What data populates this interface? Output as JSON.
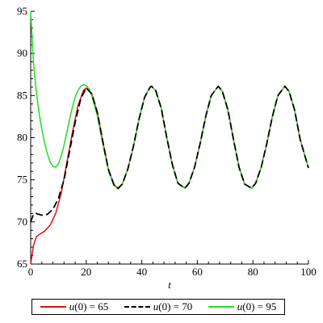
{
  "chart_data": {
    "type": "line",
    "title": "",
    "xlabel": "t",
    "ylabel": "",
    "xlim": [
      0,
      100
    ],
    "ylim": [
      65,
      95
    ],
    "xticks": [
      0,
      20,
      40,
      60,
      80,
      100
    ],
    "yticks": [
      65,
      70,
      75,
      80,
      85,
      90,
      95
    ],
    "grid": false,
    "legend_position": "bottom",
    "series": [
      {
        "name": "u(0) = 65",
        "label_var": "u",
        "label_rest": "(0) = 65",
        "color": "#e01010",
        "dash": "solid",
        "points": [
          [
            0,
            65
          ],
          [
            1,
            67.2
          ],
          [
            2,
            68.2
          ],
          [
            3,
            68.5
          ],
          [
            5,
            68.9
          ],
          [
            7,
            69.6
          ],
          [
            9,
            71
          ],
          [
            11,
            73.4
          ],
          [
            13,
            77
          ],
          [
            15,
            80.6
          ],
          [
            17,
            83.8
          ],
          [
            19,
            85.6
          ],
          [
            20,
            85.9
          ],
          [
            22,
            85.2
          ],
          [
            24,
            83
          ],
          [
            26,
            79.5
          ],
          [
            28,
            76.2
          ],
          [
            30,
            74.4
          ],
          [
            31.5,
            74
          ],
          [
            33,
            74.5
          ],
          [
            35,
            76.3
          ],
          [
            37,
            79
          ],
          [
            39,
            82.2
          ],
          [
            41,
            84.8
          ],
          [
            43,
            86
          ],
          [
            43.5,
            86.1
          ],
          [
            45,
            85.6
          ],
          [
            47,
            83.5
          ],
          [
            49,
            80
          ],
          [
            51,
            76.8
          ],
          [
            53,
            74.6
          ],
          [
            55.5,
            74
          ],
          [
            57,
            74.6
          ],
          [
            59,
            76.5
          ],
          [
            61,
            79.3
          ],
          [
            63,
            82.5
          ],
          [
            65,
            85
          ],
          [
            67.5,
            86.1
          ],
          [
            69,
            85.5
          ],
          [
            71,
            83.3
          ],
          [
            73,
            79.8
          ],
          [
            75,
            76.5
          ],
          [
            77,
            74.5
          ],
          [
            79.5,
            74
          ],
          [
            81,
            74.6
          ],
          [
            83,
            76.5
          ],
          [
            85,
            79.3
          ],
          [
            87,
            82.5
          ],
          [
            89,
            85
          ],
          [
            91.5,
            86.1
          ],
          [
            93,
            85.5
          ],
          [
            95,
            83.3
          ],
          [
            97,
            79.8
          ],
          [
            100,
            76.4
          ]
        ]
      },
      {
        "name": "u(0) = 70",
        "label_var": "u",
        "label_rest": "(0) = 70",
        "color": "#000000",
        "dash": "dashed",
        "points": [
          [
            0,
            70
          ],
          [
            1,
            70.9
          ],
          [
            2,
            71
          ],
          [
            4,
            70.8
          ],
          [
            6,
            70.9
          ],
          [
            8,
            71.5
          ],
          [
            10,
            72.8
          ],
          [
            12,
            75
          ],
          [
            14,
            78.4
          ],
          [
            16,
            81.8
          ],
          [
            18,
            84.6
          ],
          [
            20,
            85.9
          ],
          [
            22,
            85.2
          ],
          [
            24,
            83
          ],
          [
            26,
            79.5
          ],
          [
            28,
            76.2
          ],
          [
            30,
            74.4
          ],
          [
            31.5,
            74
          ],
          [
            33,
            74.5
          ],
          [
            35,
            76.3
          ],
          [
            37,
            79
          ],
          [
            39,
            82.2
          ],
          [
            41,
            84.8
          ],
          [
            43,
            86
          ],
          [
            43.5,
            86.1
          ],
          [
            45,
            85.6
          ],
          [
            47,
            83.5
          ],
          [
            49,
            80
          ],
          [
            51,
            76.8
          ],
          [
            53,
            74.6
          ],
          [
            55.5,
            74
          ],
          [
            57,
            74.6
          ],
          [
            59,
            76.5
          ],
          [
            61,
            79.3
          ],
          [
            63,
            82.5
          ],
          [
            65,
            85
          ],
          [
            67.5,
            86.1
          ],
          [
            69,
            85.5
          ],
          [
            71,
            83.3
          ],
          [
            73,
            79.8
          ],
          [
            75,
            76.5
          ],
          [
            77,
            74.5
          ],
          [
            79.5,
            74
          ],
          [
            81,
            74.6
          ],
          [
            83,
            76.5
          ],
          [
            85,
            79.3
          ],
          [
            87,
            82.5
          ],
          [
            89,
            85
          ],
          [
            91.5,
            86.1
          ],
          [
            93,
            85.5
          ],
          [
            95,
            83.3
          ],
          [
            97,
            79.8
          ],
          [
            100,
            76.4
          ]
        ]
      },
      {
        "name": "u(0) = 95",
        "label_var": "u",
        "label_rest": "(0) = 95",
        "color": "#22dd22",
        "dash": "solid",
        "points": [
          [
            0,
            95
          ],
          [
            0.5,
            92
          ],
          [
            1,
            89
          ],
          [
            2,
            85.5
          ],
          [
            3,
            83
          ],
          [
            4,
            81
          ],
          [
            5,
            79.4
          ],
          [
            6,
            78.1
          ],
          [
            7,
            77.1
          ],
          [
            8,
            76.6
          ],
          [
            9,
            76.5
          ],
          [
            10,
            76.9
          ],
          [
            11,
            77.8
          ],
          [
            12,
            79.1
          ],
          [
            13,
            80.6
          ],
          [
            14,
            82.2
          ],
          [
            15,
            83.6
          ],
          [
            16,
            84.8
          ],
          [
            17,
            85.6
          ],
          [
            18,
            86.1
          ],
          [
            19,
            86.3
          ],
          [
            20,
            86.2
          ],
          [
            21,
            85.8
          ],
          [
            22,
            85
          ],
          [
            24,
            82.6
          ],
          [
            26,
            79.2
          ],
          [
            28,
            76.1
          ],
          [
            30,
            74.3
          ],
          [
            31.5,
            73.9
          ],
          [
            33,
            74.5
          ],
          [
            35,
            76.3
          ],
          [
            37,
            79
          ],
          [
            39,
            82.2
          ],
          [
            41,
            84.8
          ],
          [
            43,
            86
          ],
          [
            43.5,
            86.1
          ],
          [
            45,
            85.6
          ],
          [
            47,
            83.5
          ],
          [
            49,
            80
          ],
          [
            51,
            76.8
          ],
          [
            53,
            74.6
          ],
          [
            55.5,
            74
          ],
          [
            57,
            74.6
          ],
          [
            59,
            76.5
          ],
          [
            61,
            79.3
          ],
          [
            63,
            82.5
          ],
          [
            65,
            85
          ],
          [
            67.5,
            86.1
          ],
          [
            69,
            85.5
          ],
          [
            71,
            83.3
          ],
          [
            73,
            79.8
          ],
          [
            75,
            76.5
          ],
          [
            77,
            74.5
          ],
          [
            79.5,
            74
          ],
          [
            81,
            74.6
          ],
          [
            83,
            76.5
          ],
          [
            85,
            79.3
          ],
          [
            87,
            82.5
          ],
          [
            89,
            85
          ],
          [
            91.5,
            86.1
          ],
          [
            93,
            85.5
          ],
          [
            95,
            83.3
          ],
          [
            97,
            79.8
          ],
          [
            100,
            76.4
          ]
        ]
      }
    ]
  }
}
